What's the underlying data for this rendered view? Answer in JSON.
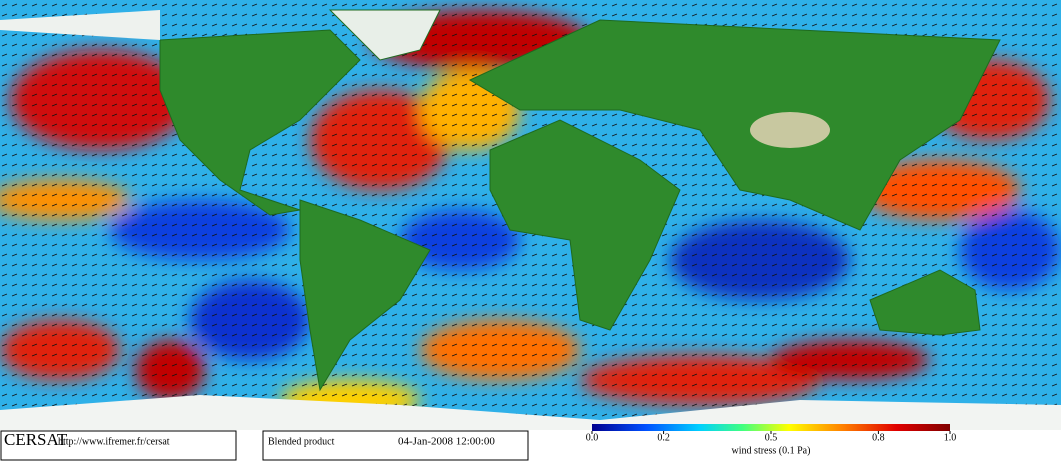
{
  "footer": {
    "brand": "CERSAT",
    "url": "http://www.ifremer.fr/cersat",
    "product": "Blended product",
    "date": "04-Jan-2008 12:00:00"
  },
  "colorbar": {
    "title": "wind stress (0.1 Pa)",
    "lim": [
      0,
      1
    ],
    "ticks": [
      {
        "value": 0,
        "label": "0.0"
      },
      0.2,
      0.5,
      0.8,
      {
        "value": 1,
        "label": "1.0"
      }
    ]
  }
}
